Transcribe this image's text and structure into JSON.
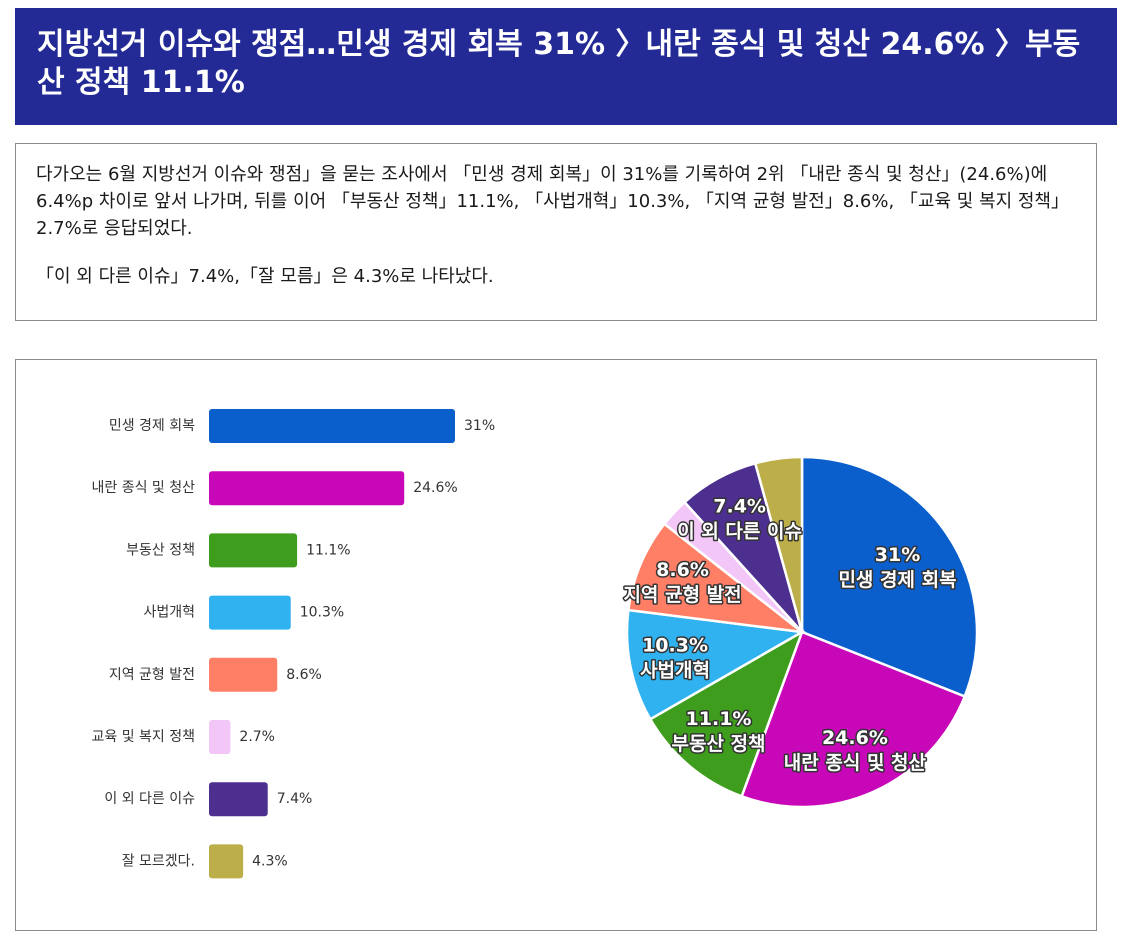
{
  "header": {
    "title": "지방선거 이슈와 쟁점…민생 경제 회복 31% 〉내란 종식 및 청산 24.6% 〉부동산 정책 11.1%"
  },
  "summary": {
    "paragraph1": "다가오는 6월 지방선거 이슈와 쟁점」을 묻는 조사에서 「민생 경제 회복」이 31%를 기록하여 2위 「내란 종식 및 청산」(24.6%)에 6.4%p 차이로 앞서 나가며, 뒤를 이어 「부동산 정책」11.1%, 「사법개혁」10.3%, 「지역 균형 발전」8.6%, 「교육 및 복지 정책」2.7%로 응답되었다.",
    "paragraph2": "「이 외 다른 이슈」7.4%,「잘 모름」은 4.3%로 나타났다."
  },
  "chart_data": [
    {
      "type": "bar",
      "orientation": "horizontal",
      "categories": [
        "민생 경제 회복",
        "내란 종식 및 청산",
        "부동산 정책",
        "사법개혁",
        "지역 균형 발전",
        "교육 및 복지 정책",
        "이 외 다른 이슈",
        "잘 모르겠다."
      ],
      "values": [
        31,
        24.6,
        11.1,
        10.3,
        8.6,
        2.7,
        7.4,
        4.3
      ],
      "value_labels": [
        "31%",
        "24.6%",
        "11.1%",
        "10.3%",
        "8.6%",
        "2.7%",
        "7.4%",
        "4.3%"
      ],
      "colors": [
        "#0a5fcc",
        "#c808b8",
        "#3e9d1c",
        "#2fb2ef",
        "#ff7f66",
        "#f3c6f8",
        "#4d2f8f",
        "#bcae49"
      ],
      "xlim": [
        0,
        31
      ],
      "grid": false,
      "legend": "none"
    },
    {
      "type": "pie",
      "labels": [
        "민생 경제 회복",
        "내란 종식 및 청산",
        "부동산 정책",
        "사법개혁",
        "지역 균형 발전",
        "교육 및 복지 정책",
        "이 외 다른 이슈",
        "잘 모르겠다."
      ],
      "values": [
        31,
        24.6,
        11.1,
        10.3,
        8.6,
        2.7,
        7.4,
        4.3
      ],
      "value_labels": [
        "31%",
        "24.6%",
        "11.1%",
        "10.3%",
        "8.6%",
        "",
        "7.4%",
        ""
      ],
      "slice_labels": [
        "민생 경제 회복",
        "내란 종식 및 청산",
        "부동산 정책",
        "사법개혁",
        "지역 균형 발전",
        "",
        "이 외 다른 이슈",
        ""
      ],
      "colors": [
        "#0a5fcc",
        "#c808b8",
        "#3e9d1c",
        "#2fb2ef",
        "#ff7f66",
        "#f3c6f8",
        "#4d2f8f",
        "#bcae49"
      ],
      "start_angle_deg": 0,
      "direction": "clockwise",
      "legend": "none"
    }
  ]
}
